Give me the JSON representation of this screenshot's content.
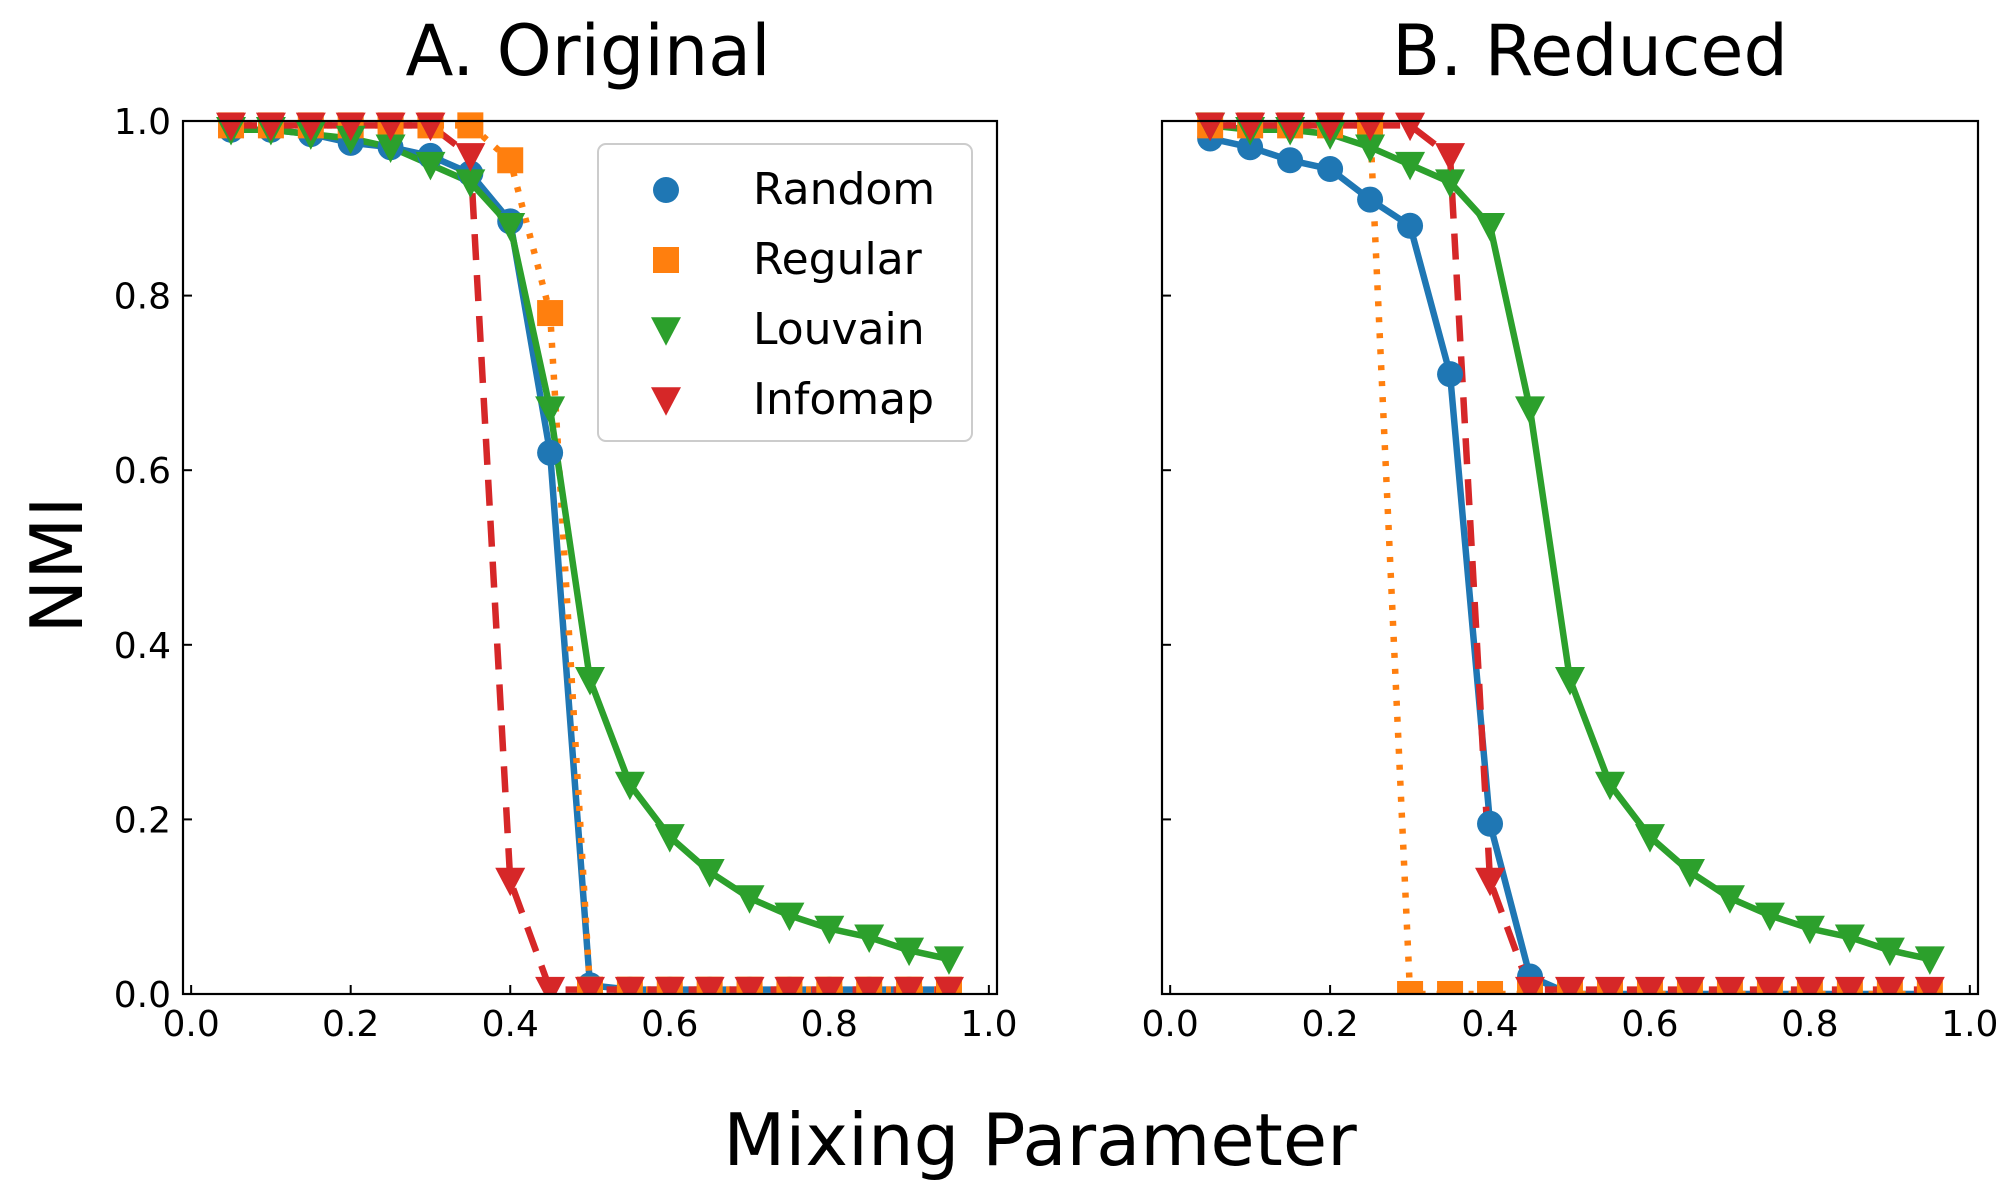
{
  "figure": {
    "ylabel": "NMI",
    "xlabel": "Mixing Parameter"
  },
  "colors": {
    "Random": "#1f77b4",
    "Regular": "#ff7f0e",
    "Louvain": "#2ca02c",
    "Infomap": "#d62728"
  },
  "chart_data": [
    {
      "type": "line",
      "title": "A. Original",
      "xlim": [
        0.0,
        1.0
      ],
      "ylim": [
        0.0,
        1.0
      ],
      "xticks": [
        "0.0",
        "0.2",
        "0.4",
        "0.6",
        "0.8",
        "1.0"
      ],
      "yticks": [
        "0.0",
        "0.2",
        "0.4",
        "0.6",
        "0.8",
        "1.0"
      ],
      "grid": false,
      "legend": "top-right",
      "x": [
        0.05,
        0.1,
        0.15,
        0.2,
        0.25,
        0.3,
        0.35,
        0.4,
        0.45,
        0.5,
        0.55,
        0.6,
        0.65,
        0.7,
        0.75,
        0.8,
        0.85,
        0.9,
        0.95
      ],
      "series": [
        {
          "name": "Random",
          "marker": "circle",
          "line": "solid",
          "values": [
            0.99,
            0.99,
            0.985,
            0.975,
            0.97,
            0.96,
            0.94,
            0.885,
            0.62,
            0.01,
            0.005,
            0.005,
            0.005,
            0.005,
            0.005,
            0.005,
            0.005,
            0.005,
            0.005
          ]
        },
        {
          "name": "Regular",
          "marker": "square",
          "line": "dotted",
          "values": [
            0.995,
            0.995,
            0.995,
            0.995,
            0.995,
            0.995,
            0.995,
            0.955,
            0.78,
            0.005,
            0.005,
            0.005,
            0.005,
            0.005,
            0.005,
            0.005,
            0.005,
            0.005,
            0.005
          ]
        },
        {
          "name": "Louvain",
          "marker": "triangle-down",
          "line": "solid",
          "values": [
            0.99,
            0.99,
            0.985,
            0.98,
            0.97,
            0.95,
            0.93,
            0.88,
            0.67,
            0.36,
            0.24,
            0.18,
            0.14,
            0.11,
            0.09,
            0.075,
            0.065,
            0.05,
            0.04
          ]
        },
        {
          "name": "Infomap",
          "marker": "triangle-down",
          "line": "dashed",
          "values": [
            0.995,
            0.995,
            0.995,
            0.995,
            0.995,
            0.995,
            0.96,
            0.13,
            0.005,
            0.005,
            0.005,
            0.005,
            0.005,
            0.005,
            0.005,
            0.005,
            0.005,
            0.005,
            0.005
          ]
        }
      ]
    },
    {
      "type": "line",
      "title": "B. Reduced",
      "xlim": [
        0.0,
        1.0
      ],
      "ylim": [
        0.0,
        1.0
      ],
      "xticks": [
        "0.0",
        "0.2",
        "0.4",
        "0.6",
        "0.8",
        "1.0"
      ],
      "yticks": [],
      "grid": false,
      "x": [
        0.05,
        0.1,
        0.15,
        0.2,
        0.25,
        0.3,
        0.35,
        0.4,
        0.45,
        0.5,
        0.55,
        0.6,
        0.65,
        0.7,
        0.75,
        0.8,
        0.85,
        0.9,
        0.95
      ],
      "series": [
        {
          "name": "Random",
          "marker": "circle",
          "line": "solid",
          "values": [
            0.98,
            0.97,
            0.955,
            0.945,
            0.91,
            0.88,
            0.71,
            0.195,
            0.02,
            0.0,
            0.0,
            0.0,
            0.0,
            0.0,
            0.0,
            0.0,
            0.0,
            0.0,
            0.0
          ]
        },
        {
          "name": "Regular",
          "marker": "square",
          "line": "dotted",
          "values": [
            0.995,
            0.995,
            0.995,
            0.995,
            0.995,
            0.0,
            0.0,
            0.0,
            0.0,
            0.0,
            0.0,
            0.0,
            0.0,
            0.0,
            0.0,
            0.0,
            0.0,
            0.0,
            0.0
          ]
        },
        {
          "name": "Louvain",
          "marker": "triangle-down",
          "line": "solid",
          "values": [
            0.995,
            0.99,
            0.99,
            0.985,
            0.97,
            0.95,
            0.93,
            0.88,
            0.67,
            0.36,
            0.24,
            0.18,
            0.14,
            0.11,
            0.09,
            0.075,
            0.065,
            0.05,
            0.04
          ]
        },
        {
          "name": "Infomap",
          "marker": "triangle-down",
          "line": "dashed",
          "values": [
            0.995,
            0.995,
            0.995,
            0.995,
            0.995,
            0.995,
            0.96,
            0.13,
            0.005,
            0.005,
            0.005,
            0.005,
            0.005,
            0.005,
            0.005,
            0.005,
            0.005,
            0.005,
            0.005
          ]
        }
      ]
    }
  ]
}
